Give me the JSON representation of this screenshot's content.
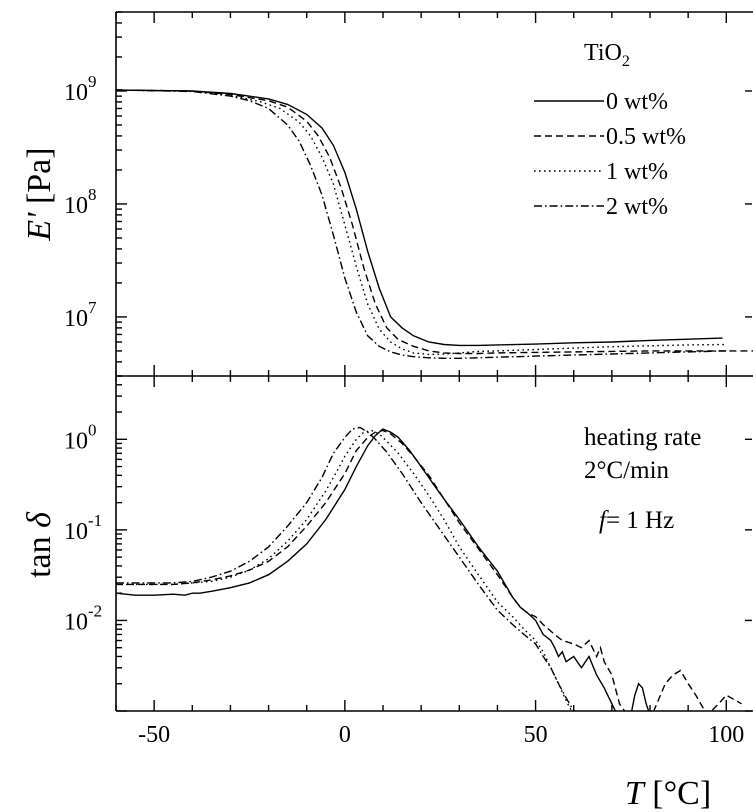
{
  "chart_data": [
    {
      "type": "line",
      "panel": "top",
      "title": "",
      "xlabel": "",
      "ylabel_italic": "E'",
      "ylabel_rest": " [Pa]",
      "y_scale": "log",
      "ylim": [
        3000000,
        5000000000
      ],
      "xlim": [
        -60,
        107
      ],
      "yticks_major": [
        {
          "value": 10000000,
          "base": "10",
          "exp": "7"
        },
        {
          "value": 100000000,
          "base": "10",
          "exp": "8"
        },
        {
          "value": 1000000000,
          "base": "10",
          "exp": "9"
        }
      ],
      "legend": {
        "title_main": "TiO",
        "title_sub": "2",
        "placement": "top-right"
      },
      "series": [
        {
          "name": "0 wt%",
          "dash": "solid",
          "x": [
            -60,
            -40,
            -30,
            -20,
            -15,
            -10,
            -6,
            -3,
            0,
            3,
            6,
            9,
            12,
            15,
            18,
            22,
            26,
            30,
            35,
            40,
            50,
            60,
            70,
            80,
            90,
            99
          ],
          "y": [
            1020000000.0,
            1000000000.0,
            950000000.0,
            850000000.0,
            760000000.0,
            620000000.0,
            470000000.0,
            330000000.0,
            190000000.0,
            90000000.0,
            38000000.0,
            18000000.0,
            10000000.0,
            8000000.0,
            6800000.0,
            6000000.0,
            5700000.0,
            5600000.0,
            5600000.0,
            5650000.0,
            5750000.0,
            5900000.0,
            6000000.0,
            6200000.0,
            6350000.0,
            6500000.0
          ]
        },
        {
          "name": "0.5 wt%",
          "dash": "dashed",
          "x": [
            -60,
            -40,
            -30,
            -20,
            -15,
            -10,
            -7,
            -4,
            -1,
            2,
            5,
            8,
            11,
            14,
            18,
            22,
            26,
            30,
            35,
            40,
            50,
            60,
            70,
            80,
            90,
            100,
            107
          ],
          "y": [
            1020000000.0,
            1000000000.0,
            930000000.0,
            820000000.0,
            720000000.0,
            540000000.0,
            400000000.0,
            260000000.0,
            140000000.0,
            65000000.0,
            27000000.0,
            13000000.0,
            8000000.0,
            6300000.0,
            5500000.0,
            5000000.0,
            4800000.0,
            4750000.0,
            4750000.0,
            4800000.0,
            4850000.0,
            4900000.0,
            4950000.0,
            5000000.0,
            5000000.0,
            5000000.0,
            5000000.0
          ]
        },
        {
          "name": "1 wt%",
          "dash": "dotted",
          "x": [
            -60,
            -40,
            -30,
            -22,
            -17,
            -12,
            -9,
            -6,
            -3,
            0,
            3,
            6,
            9,
            12,
            15,
            18,
            22,
            26,
            30,
            35,
            40,
            50,
            60,
            70,
            80,
            90,
            100
          ],
          "y": [
            1020000000.0,
            1000000000.0,
            920000000.0,
            800000000.0,
            700000000.0,
            530000000.0,
            400000000.0,
            260000000.0,
            150000000.0,
            65000000.0,
            28000000.0,
            13000000.0,
            7800000.0,
            6000000.0,
            5200000.0,
            4800000.0,
            4650000.0,
            4700000.0,
            4800000.0,
            4950000.0,
            5000000.0,
            5150000.0,
            5300000.0,
            5450000.0,
            5550000.0,
            5650000.0,
            5700000.0
          ]
        },
        {
          "name": "2 wt%",
          "dash": "dashdot",
          "x": [
            -60,
            -40,
            -30,
            -25,
            -20,
            -15,
            -12,
            -9,
            -6,
            -3,
            0,
            3,
            6,
            9,
            12,
            15,
            18,
            22,
            26,
            30,
            35,
            40,
            50,
            60,
            70,
            80,
            90,
            100
          ],
          "y": [
            1020000000.0,
            990000000.0,
            900000000.0,
            820000000.0,
            700000000.0,
            500000000.0,
            360000000.0,
            220000000.0,
            120000000.0,
            53000000.0,
            22000000.0,
            11000000.0,
            6800000.0,
            5500000.0,
            4900000.0,
            4600000.0,
            4450000.0,
            4350000.0,
            4300000.0,
            4300000.0,
            4350000.0,
            4400000.0,
            4500000.0,
            4600000.0,
            4700000.0,
            4800000.0,
            4900000.0,
            5000000.0
          ]
        }
      ]
    },
    {
      "type": "line",
      "panel": "bottom",
      "title": "",
      "xlabel_italic": "T",
      "xlabel_rest": " [°C]",
      "ylabel_main": "tan ",
      "ylabel_symbol": "δ",
      "y_scale": "log",
      "ylim": [
        0.001,
        5
      ],
      "xlim": [
        -60,
        107
      ],
      "xticks_major": [
        -50,
        0,
        50,
        100
      ],
      "yticks_major": [
        {
          "value": 0.01,
          "base": "10",
          "exp": "-2"
        },
        {
          "value": 0.1,
          "base": "10",
          "exp": "-1"
        },
        {
          "value": 1,
          "base": "10",
          "exp": "0"
        }
      ],
      "annotations": {
        "line1": "heating rate",
        "line2": "2°C/min",
        "freq_symbol": "f",
        "freq_rest": "= 1 Hz"
      },
      "series": [
        {
          "name": "0 wt%",
          "dash": "solid",
          "x": [
            -60,
            -55,
            -50,
            -45,
            -42,
            -40,
            -38,
            -35,
            -30,
            -25,
            -20,
            -15,
            -10,
            -5,
            0,
            3,
            6,
            8,
            10,
            12,
            14,
            17,
            20,
            25,
            30,
            35,
            40,
            44,
            46,
            48,
            50,
            52,
            54,
            55,
            56,
            57,
            58,
            60,
            62,
            64,
            66,
            68,
            70,
            72,
            74,
            75,
            76,
            77,
            78,
            79,
            80,
            81,
            82
          ],
          "y": [
            0.02,
            0.019,
            0.019,
            0.0195,
            0.019,
            0.02,
            0.02,
            0.021,
            0.023,
            0.026,
            0.032,
            0.045,
            0.07,
            0.13,
            0.28,
            0.5,
            0.85,
            1.1,
            1.3,
            1.2,
            1.05,
            0.75,
            0.5,
            0.25,
            0.13,
            0.065,
            0.035,
            0.018,
            0.014,
            0.012,
            0.01,
            0.007,
            0.006,
            0.005,
            0.004,
            0.0045,
            0.0035,
            0.004,
            0.003,
            0.004,
            0.0025,
            0.0018,
            0.0012,
            0.0008,
            0.0008,
            0.0009,
            0.0015,
            0.002,
            0.0018,
            0.0012,
            0.0009,
            0.0008,
            0.0008
          ]
        },
        {
          "name": "0.5 wt%",
          "dash": "dashed",
          "x": [
            -60,
            -55,
            -50,
            -45,
            -40,
            -35,
            -30,
            -25,
            -20,
            -15,
            -10,
            -5,
            0,
            3,
            6,
            8,
            10,
            12,
            15,
            18,
            22,
            26,
            30,
            35,
            40,
            44,
            46,
            48,
            50,
            52,
            55,
            57,
            60,
            62,
            64,
            66,
            67,
            68,
            70,
            72,
            75,
            78,
            80,
            84,
            86,
            88,
            90,
            92,
            95,
            98,
            100,
            104
          ],
          "y": [
            0.025,
            0.025,
            0.025,
            0.025,
            0.026,
            0.028,
            0.031,
            0.036,
            0.045,
            0.065,
            0.11,
            0.2,
            0.42,
            0.75,
            1.05,
            1.2,
            1.25,
            1.15,
            0.9,
            0.65,
            0.4,
            0.22,
            0.12,
            0.062,
            0.032,
            0.018,
            0.014,
            0.012,
            0.011,
            0.009,
            0.007,
            0.006,
            0.0055,
            0.005,
            0.006,
            0.004,
            0.005,
            0.0035,
            0.0025,
            0.0012,
            0.0008,
            0.0007,
            0.0008,
            0.002,
            0.0025,
            0.0028,
            0.002,
            0.0015,
            0.0009,
            0.0012,
            0.0015,
            0.0012
          ]
        },
        {
          "name": "1 wt%",
          "dash": "dotted",
          "x": [
            -60,
            -55,
            -50,
            -45,
            -40,
            -35,
            -30,
            -25,
            -20,
            -15,
            -10,
            -5,
            -2,
            0,
            3,
            5,
            7,
            9,
            11,
            14,
            18,
            22,
            26,
            30,
            35,
            40,
            44,
            47,
            50,
            52,
            54,
            56,
            58,
            60
          ],
          "y": [
            0.025,
            0.025,
            0.025,
            0.025,
            0.026,
            0.027,
            0.03,
            0.036,
            0.048,
            0.075,
            0.13,
            0.27,
            0.45,
            0.65,
            1.0,
            1.2,
            1.25,
            1.15,
            0.95,
            0.7,
            0.42,
            0.24,
            0.13,
            0.065,
            0.032,
            0.016,
            0.011,
            0.008,
            0.006,
            0.0045,
            0.003,
            0.002,
            0.0013,
            0.0009
          ]
        },
        {
          "name": "2 wt%",
          "dash": "dashdot",
          "x": [
            -60,
            -55,
            -50,
            -45,
            -40,
            -35,
            -30,
            -25,
            -20,
            -15,
            -10,
            -6,
            -3,
            0,
            2,
            4,
            6,
            8,
            11,
            15,
            20,
            25,
            30,
            35,
            40,
            44,
            47,
            50,
            52,
            54,
            56,
            58,
            60
          ],
          "y": [
            0.026,
            0.026,
            0.026,
            0.026,
            0.027,
            0.03,
            0.035,
            0.045,
            0.065,
            0.11,
            0.2,
            0.38,
            0.7,
            1.05,
            1.3,
            1.35,
            1.2,
            1.0,
            0.72,
            0.42,
            0.2,
            0.1,
            0.05,
            0.025,
            0.013,
            0.009,
            0.007,
            0.0055,
            0.004,
            0.003,
            0.002,
            0.0014,
            0.001
          ]
        }
      ]
    }
  ]
}
